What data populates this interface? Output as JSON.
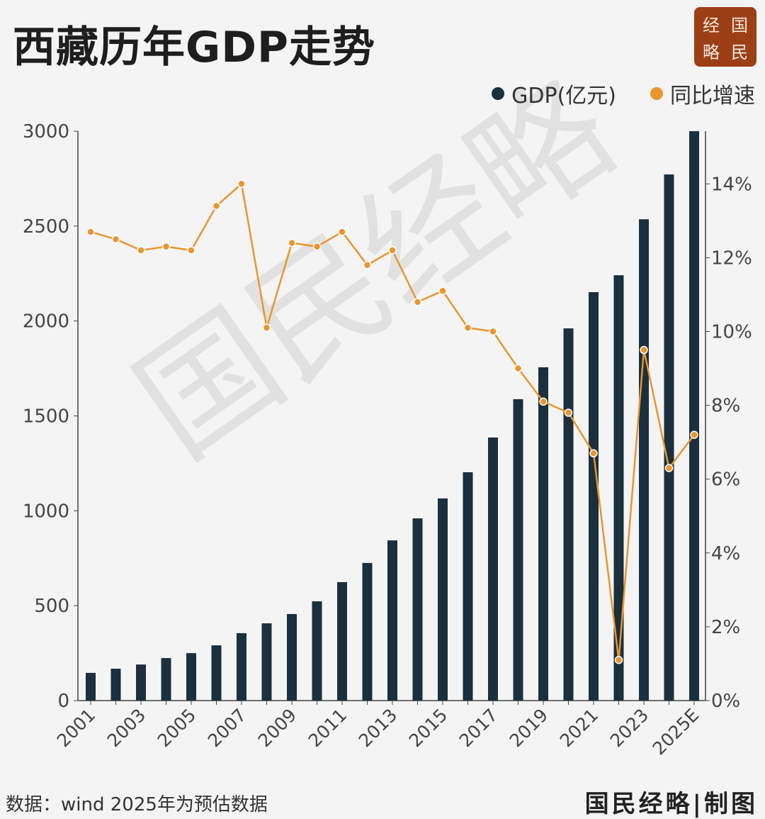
{
  "title": "西藏历年GDP走势",
  "logo": [
    "经",
    "国",
    "略",
    "民"
  ],
  "watermark": "国民经略",
  "footer": {
    "source": "数据：wind  2025年为预估数据",
    "credit": "国民经略|制图"
  },
  "colors": {
    "bar": "#1b2f3d",
    "line": "#e8962e",
    "logo_bg": "#9c3f17"
  },
  "chart_data": {
    "type": "bar+line",
    "categories": [
      "2001",
      "2002",
      "2003",
      "2004",
      "2005",
      "2006",
      "2007",
      "2008",
      "2009",
      "2010",
      "2011",
      "2012",
      "2013",
      "2014",
      "2015",
      "2016",
      "2017",
      "2018",
      "2019",
      "2020",
      "2021",
      "2022",
      "2023",
      "2024",
      "2025E"
    ],
    "x_tick_labels": [
      "2001",
      "2003",
      "2005",
      "2007",
      "2009",
      "2011",
      "2013",
      "2015",
      "2017",
      "2019",
      "2021",
      "2023",
      "2025E"
    ],
    "series": [
      {
        "name": "GDP(亿元)",
        "type": "bar",
        "axis": "left",
        "values": [
          146,
          168,
          190,
          224,
          250,
          291,
          355,
          407,
          456,
          523,
          624,
          725,
          844,
          960,
          1065,
          1203,
          1386,
          1588,
          1756,
          1961,
          2152,
          2241,
          2536,
          2772,
          3000
        ]
      },
      {
        "name": "同比增速",
        "type": "line",
        "axis": "right",
        "unit": "%",
        "values": [
          12.7,
          12.5,
          12.2,
          12.3,
          12.2,
          13.4,
          14.0,
          10.1,
          12.4,
          12.3,
          12.7,
          11.8,
          12.2,
          10.8,
          11.1,
          10.1,
          10.0,
          9.0,
          8.1,
          7.8,
          6.7,
          1.1,
          9.5,
          6.3,
          7.2
        ]
      }
    ],
    "left_axis": {
      "ylim": [
        0,
        3000
      ],
      "ticks": [
        "0",
        "500",
        "1000",
        "1500",
        "2000",
        "2500",
        "3000"
      ]
    },
    "right_axis": {
      "ylim": [
        0,
        15.4
      ],
      "ticks": [
        "0%",
        "2%",
        "4%",
        "6%",
        "8%",
        "10%",
        "12%",
        "14%"
      ]
    },
    "legend_position": "top-right",
    "grid": false
  }
}
